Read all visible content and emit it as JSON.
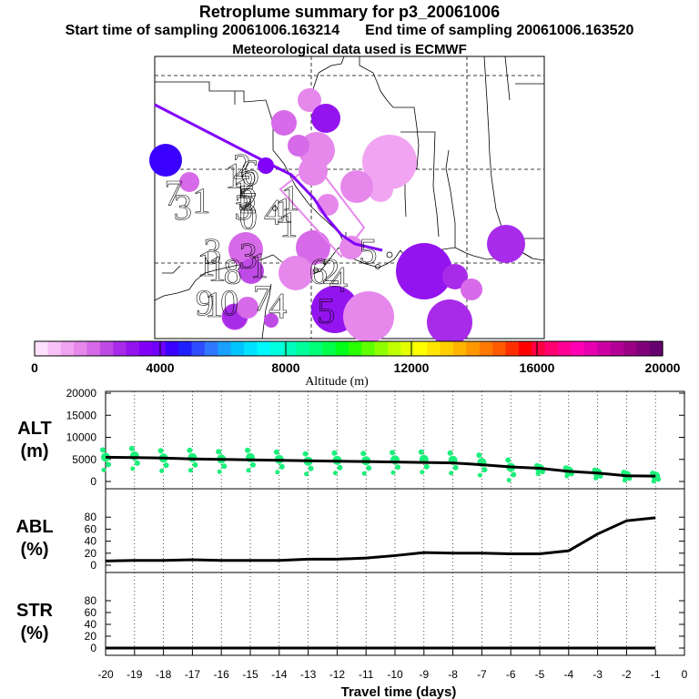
{
  "header": {
    "title": "Retroplume summary for p3_20061006",
    "start_label": "Start time of sampling 20061006.163214",
    "end_label": "End time of sampling 20061006.163520",
    "met_label": "Meteorological data used is ECMWF"
  },
  "map": {
    "plume_labels": [
      {
        "n": "2",
        "lon": -94.4,
        "lat": 35.2,
        "alt": 1800
      },
      {
        "n": "1",
        "lon": -94.9,
        "lat": 34.6,
        "alt": 2200
      },
      {
        "n": "6",
        "lon": -93.9,
        "lat": 34.8,
        "alt": 4200
      },
      {
        "n": "2",
        "lon": -94.0,
        "lat": 34.1,
        "alt": 2000
      },
      {
        "n": "1",
        "lon": -94.4,
        "lat": 33.6,
        "alt": 1500
      },
      {
        "n": "5",
        "lon": -94.1,
        "lat": 33.2,
        "alt": 1200
      },
      {
        "n": "2",
        "lon": -94.0,
        "lat": 33.0,
        "alt": 1200
      },
      {
        "n": "7",
        "lon": -98.8,
        "lat": 33.5,
        "alt": 4600
      },
      {
        "n": "3",
        "lon": -98.2,
        "lat": 32.6,
        "alt": 1800
      },
      {
        "n": "1",
        "lon": -97.0,
        "lat": 33.0,
        "alt": 1500
      },
      {
        "n": "3",
        "lon": -94.3,
        "lat": 32.6,
        "alt": 1500
      },
      {
        "n": "0",
        "lon": -94.0,
        "lat": 32.0,
        "alt": 1400
      },
      {
        "n": "1",
        "lon": -91.3,
        "lat": 33.2,
        "alt": 900
      },
      {
        "n": "1",
        "lon": -91.7,
        "lat": 32.4,
        "alt": 900
      },
      {
        "n": "4",
        "lon": -92.4,
        "lat": 32.3,
        "alt": 1300
      },
      {
        "n": "1",
        "lon": -91.4,
        "lat": 31.5,
        "alt": 900
      },
      {
        "n": "3",
        "lon": -96.3,
        "lat": 29.8,
        "alt": 1500
      },
      {
        "n": "1",
        "lon": -96.7,
        "lat": 29.0,
        "alt": 1500
      },
      {
        "n": "1",
        "lon": -96.0,
        "lat": 28.7,
        "alt": 1500
      },
      {
        "n": "8",
        "lon": -95.0,
        "lat": 28.5,
        "alt": 1800
      },
      {
        "n": "3",
        "lon": -94.0,
        "lat": 29.5,
        "alt": 1800
      },
      {
        "n": "1",
        "lon": -93.3,
        "lat": 28.9,
        "alt": 1500
      },
      {
        "n": "6",
        "lon": -89.5,
        "lat": 28.5,
        "alt": 4500
      },
      {
        "n": "2",
        "lon": -88.7,
        "lat": 28.5,
        "alt": 4500
      },
      {
        "n": "4",
        "lon": -88.2,
        "lat": 28.0,
        "alt": 1800
      },
      {
        "n": "5",
        "lon": -86.3,
        "lat": 29.8,
        "alt": 4000
      },
      {
        "n": "9",
        "lon": -96.8,
        "lat": 26.5,
        "alt": 3000
      },
      {
        "n": "1",
        "lon": -96.2,
        "lat": 26.4,
        "alt": 1500
      },
      {
        "n": "0",
        "lon": -95.2,
        "lat": 26.5,
        "alt": 1500
      },
      {
        "n": "7",
        "lon": -93.1,
        "lat": 26.8,
        "alt": 3800
      },
      {
        "n": "4",
        "lon": -92.1,
        "lat": 26.3,
        "alt": 1700
      },
      {
        "n": "5",
        "lon": -89.0,
        "lat": 26.0,
        "alt": 3600
      }
    ]
  },
  "colorbar": {
    "xlabel": "Altitude (m)",
    "ticks": [
      "0",
      "4000",
      "8000",
      "12000",
      "16000",
      "20000"
    ],
    "colors": [
      "#fde0fd",
      "#f8c2f8",
      "#f1a4f1",
      "#e687ec",
      "#d66ae8",
      "#bf4be6",
      "#a82bea",
      "#9414f0",
      "#8000f8",
      "#7000ff",
      "#3a00ff",
      "#2020ff",
      "#2f4dff",
      "#2f78ff",
      "#1aa0ff",
      "#00c4ff",
      "#00e1ff",
      "#00f8ff",
      "#00ffe0",
      "#00ffbe",
      "#00ff9b",
      "#00ff78",
      "#00ff4c",
      "#00ff1a",
      "#2aff00",
      "#5fff00",
      "#8fff00",
      "#c0ff00",
      "#e6ff00",
      "#ffff00",
      "#ffe600",
      "#ffcd00",
      "#ffb400",
      "#ff9800",
      "#ff7a00",
      "#ff5a00",
      "#ff3000",
      "#ff0000",
      "#ff0044",
      "#ff0070",
      "#ff0095",
      "#ff00b5",
      "#e600b0",
      "#cc00a2",
      "#b30094",
      "#990086",
      "#80007a",
      "#66006e"
    ]
  },
  "chart_data": [
    {
      "type": "scatter",
      "title": "ALT (m)",
      "ylabel_line1": "ALT",
      "ylabel_line2": "(m)",
      "ylim": [
        0,
        20000
      ],
      "yticks": [
        "0",
        "5000",
        "10000",
        "15000",
        "20000"
      ],
      "x": [
        -20,
        -19,
        -18,
        -17,
        -16,
        -15,
        -14,
        -13,
        -12,
        -11,
        -10,
        -9,
        -8,
        -7,
        -6,
        -5,
        -4,
        -3,
        -2,
        -1
      ],
      "series": [
        {
          "name": "mean altitude",
          "values": [
            5500,
            5400,
            5300,
            5100,
            5000,
            4900,
            4800,
            4700,
            4600,
            4500,
            4400,
            4300,
            4200,
            3800,
            3300,
            3000,
            2300,
            1900,
            1300,
            1200
          ]
        },
        {
          "name": "plume clusters (green dots)",
          "values": [
            5500,
            5800,
            5300,
            5400,
            5100,
            5400,
            5000,
            4600,
            4800,
            4700,
            4900,
            5000,
            4800,
            4300,
            3200,
            2900,
            2400,
            1900,
            1400,
            1200
          ]
        }
      ]
    },
    {
      "type": "line",
      "title": "ABL (%)",
      "ylabel_line1": "ABL",
      "ylabel_line2": "(%)",
      "ylim": [
        0,
        100
      ],
      "yticks": [
        "0",
        "20",
        "40",
        "60",
        "80"
      ],
      "x": [
        -20,
        -19,
        -18,
        -17,
        -16,
        -15,
        -14,
        -13,
        -12,
        -11,
        -10,
        -9,
        -8,
        -7,
        -6,
        -5,
        -4,
        -3,
        -2,
        -1
      ],
      "series": [
        {
          "name": "ABL",
          "values": [
            7,
            8,
            8,
            9,
            8,
            8,
            8,
            10,
            10,
            12,
            16,
            21,
            20,
            20,
            19,
            19,
            24,
            52,
            74,
            79
          ]
        }
      ]
    },
    {
      "type": "line",
      "title": "STR (%)",
      "ylabel_line1": "STR",
      "ylabel_line2": "(%)",
      "ylim": [
        0,
        100
      ],
      "yticks": [
        "0",
        "20",
        "40",
        "60",
        "80"
      ],
      "xlabel": "Travel time (days)",
      "x": [
        -20,
        -19,
        -18,
        -17,
        -16,
        -15,
        -14,
        -13,
        -12,
        -11,
        -10,
        -9,
        -8,
        -7,
        -6,
        -5,
        -4,
        -3,
        -2,
        -1
      ],
      "xticks": [
        "-20",
        "-19",
        "-18",
        "-17",
        "-16",
        "-15",
        "-14",
        "-13",
        "-12",
        "-11",
        "-10",
        "-9",
        "-8",
        "-7",
        "-6",
        "-5",
        "-4",
        "-3",
        "-2",
        "-1",
        "0"
      ],
      "series": [
        {
          "name": "STR",
          "values": [
            0,
            0,
            0,
            0,
            0,
            0,
            0,
            0,
            0,
            0,
            0,
            0,
            0,
            0,
            0,
            0,
            0,
            0,
            0,
            0
          ]
        }
      ]
    }
  ]
}
